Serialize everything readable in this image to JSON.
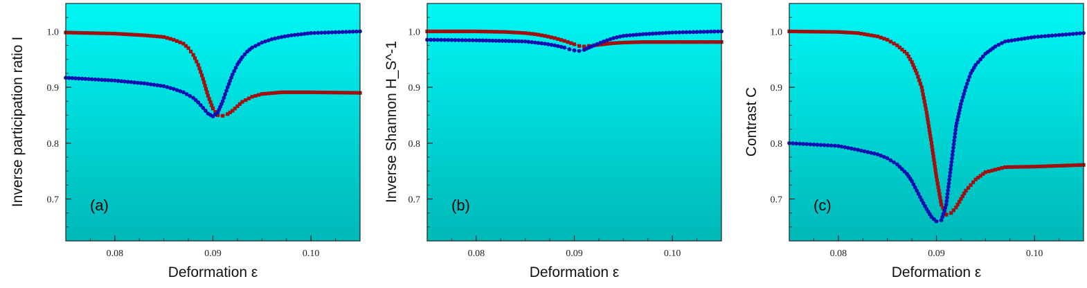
{
  "colors": {
    "series_1": "#a01010",
    "series_2": "#1010b0",
    "bg_top": "#00f6f6",
    "bg_bottom": "#00b8b8"
  },
  "chart_data": [
    {
      "type": "scatter",
      "panel": "(a)",
      "xlabel": "Deformation ε",
      "ylabel": "Inverse participation ratio  I",
      "xlim": [
        0.075,
        0.105
      ],
      "ylim": [
        0.625,
        1.05
      ],
      "xticks": [
        0.08,
        0.09,
        0.1
      ],
      "xtick_labels": [
        "0.08",
        "0.09",
        "0.10"
      ],
      "yticks": [
        0.7,
        0.8,
        0.9,
        1.0
      ],
      "ytick_labels": [
        "0.7",
        "0.8",
        "0.9",
        "1.0"
      ],
      "series": [
        {
          "marker": "square",
          "color": "#a01010",
          "x": [
            0.075,
            0.08,
            0.083,
            0.085,
            0.086,
            0.087,
            0.0875,
            0.088,
            0.0885,
            0.089,
            0.0895,
            0.09,
            0.0905,
            0.091,
            0.0915,
            0.092,
            0.0925,
            0.093,
            0.094,
            0.095,
            0.097,
            0.1,
            0.105
          ],
          "y": [
            0.998,
            0.996,
            0.993,
            0.99,
            0.985,
            0.978,
            0.97,
            0.958,
            0.94,
            0.915,
            0.885,
            0.862,
            0.85,
            0.849,
            0.852,
            0.858,
            0.866,
            0.874,
            0.883,
            0.888,
            0.891,
            0.891,
            0.89
          ]
        },
        {
          "marker": "circle",
          "color": "#1010b0",
          "x": [
            0.075,
            0.078,
            0.08,
            0.083,
            0.085,
            0.086,
            0.087,
            0.088,
            0.0885,
            0.089,
            0.0895,
            0.09,
            0.0905,
            0.091,
            0.0915,
            0.092,
            0.0925,
            0.093,
            0.0935,
            0.094,
            0.095,
            0.096,
            0.097,
            0.098,
            0.1,
            0.105
          ],
          "y": [
            0.917,
            0.914,
            0.912,
            0.907,
            0.902,
            0.897,
            0.891,
            0.881,
            0.873,
            0.863,
            0.853,
            0.848,
            0.855,
            0.875,
            0.9,
            0.923,
            0.941,
            0.954,
            0.964,
            0.971,
            0.98,
            0.986,
            0.99,
            0.993,
            0.997,
            1.0
          ]
        }
      ]
    },
    {
      "type": "scatter",
      "panel": "(b)",
      "xlabel": "Deformation ε",
      "ylabel": "Inverse Shannon  H_S^-1",
      "xlim": [
        0.075,
        0.105
      ],
      "ylim": [
        0.625,
        1.05
      ],
      "xticks": [
        0.08,
        0.09,
        0.1
      ],
      "xtick_labels": [
        "0.08",
        "0.09",
        "0.10"
      ],
      "yticks": [
        0.7,
        0.8,
        0.9,
        1.0
      ],
      "ytick_labels": [
        "0.7",
        "0.8",
        "0.9",
        "1.0"
      ],
      "series": [
        {
          "marker": "square",
          "color": "#a01010",
          "x": [
            0.075,
            0.08,
            0.083,
            0.085,
            0.086,
            0.087,
            0.088,
            0.089,
            0.09,
            0.0905,
            0.091,
            0.0915,
            0.092,
            0.093,
            0.094,
            0.095,
            0.097,
            0.1,
            0.105
          ],
          "y": [
            1.0,
            1.0,
            0.999,
            0.997,
            0.995,
            0.992,
            0.988,
            0.983,
            0.977,
            0.974,
            0.973,
            0.974,
            0.975,
            0.977,
            0.979,
            0.98,
            0.981,
            0.981,
            0.981
          ]
        },
        {
          "marker": "circle",
          "color": "#1010b0",
          "x": [
            0.075,
            0.08,
            0.083,
            0.085,
            0.086,
            0.087,
            0.088,
            0.089,
            0.0895,
            0.09,
            0.0905,
            0.091,
            0.0915,
            0.092,
            0.093,
            0.094,
            0.095,
            0.097,
            0.1,
            0.105
          ],
          "y": [
            0.985,
            0.984,
            0.983,
            0.982,
            0.98,
            0.978,
            0.975,
            0.971,
            0.968,
            0.966,
            0.965,
            0.967,
            0.971,
            0.975,
            0.982,
            0.988,
            0.992,
            0.995,
            0.998,
            1.0
          ]
        }
      ]
    },
    {
      "type": "scatter",
      "panel": "(c)",
      "xlabel": "Deformation ε",
      "ylabel": "Contrast  C",
      "xlim": [
        0.075,
        0.105
      ],
      "ylim": [
        0.625,
        1.05
      ],
      "xticks": [
        0.08,
        0.09,
        0.1
      ],
      "xtick_labels": [
        "0.08",
        "0.09",
        "0.10"
      ],
      "yticks": [
        0.7,
        0.8,
        0.9,
        1.0
      ],
      "ytick_labels": [
        "0.7",
        "0.8",
        "0.9",
        "1.0"
      ],
      "series": [
        {
          "marker": "square",
          "color": "#a01010",
          "x": [
            0.075,
            0.08,
            0.082,
            0.084,
            0.085,
            0.086,
            0.087,
            0.0875,
            0.088,
            0.0885,
            0.089,
            0.0895,
            0.09,
            0.0905,
            0.091,
            0.0915,
            0.092,
            0.0925,
            0.093,
            0.094,
            0.095,
            0.097,
            0.1,
            0.105
          ],
          "y": [
            1.0,
            0.999,
            0.997,
            0.991,
            0.985,
            0.975,
            0.96,
            0.945,
            0.925,
            0.9,
            0.855,
            0.8,
            0.74,
            0.69,
            0.672,
            0.675,
            0.685,
            0.7,
            0.715,
            0.735,
            0.748,
            0.757,
            0.758,
            0.761
          ]
        },
        {
          "marker": "circle",
          "color": "#1010b0",
          "x": [
            0.075,
            0.08,
            0.082,
            0.084,
            0.085,
            0.086,
            0.087,
            0.0875,
            0.088,
            0.0885,
            0.089,
            0.0895,
            0.09,
            0.0905,
            0.091,
            0.0915,
            0.092,
            0.0925,
            0.093,
            0.0935,
            0.094,
            0.095,
            0.096,
            0.097,
            0.1,
            0.105
          ],
          "y": [
            0.8,
            0.795,
            0.788,
            0.78,
            0.773,
            0.762,
            0.745,
            0.732,
            0.715,
            0.698,
            0.682,
            0.668,
            0.66,
            0.662,
            0.69,
            0.76,
            0.83,
            0.87,
            0.9,
            0.925,
            0.94,
            0.96,
            0.973,
            0.982,
            0.99,
            0.997
          ]
        }
      ]
    }
  ]
}
